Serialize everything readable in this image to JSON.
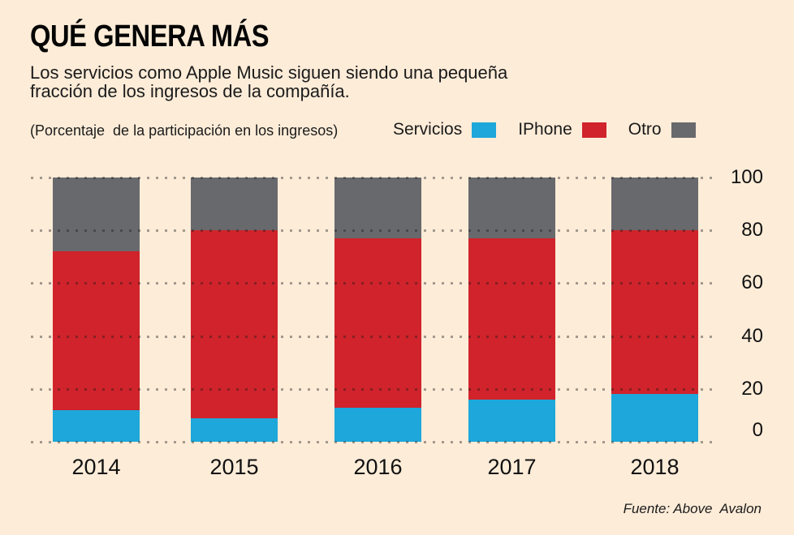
{
  "header": {
    "title": "QUÉ GENERA MÁS",
    "subtitle_lines": [
      "Los servicios como Apple Music siguen siendo una pequeña",
      "fracción de los ingresos de la compañía."
    ]
  },
  "chart": {
    "note": "(Porcentaje  de la participación en los ingresos)"
  },
  "chart_data": {
    "type": "bar",
    "stacked": true,
    "title": "QUÉ GENERA MÁS",
    "categories": [
      "2014",
      "2015",
      "2016",
      "2017",
      "2018"
    ],
    "series": [
      {
        "name": "Servicios",
        "color": "#1ea7da",
        "values": [
          12,
          9,
          13,
          16,
          18
        ]
      },
      {
        "name": "IPhone",
        "color": "#d0232b",
        "values": [
          60,
          71,
          64,
          61,
          62
        ]
      },
      {
        "name": "Otro",
        "color": "#68696d",
        "values": [
          28,
          20,
          23,
          23,
          20
        ]
      }
    ],
    "ylabel": "(Porcentaje de la participación en los ingresos)",
    "ylim": [
      0,
      100
    ],
    "yticks": [
      0,
      20,
      40,
      60,
      80,
      100
    ],
    "grid": "horizontal-dotted",
    "legend_position": "top-right",
    "units": "percent"
  },
  "footer": {
    "source": "Fuente: Above  Avalon"
  },
  "colors": {
    "background": "#fdecd8",
    "servicios": "#1ea7da",
    "iphone": "#d0232b",
    "otro": "#68696d",
    "grid_dot": "rgba(25,25,25,0.40)",
    "text": "#141414"
  }
}
